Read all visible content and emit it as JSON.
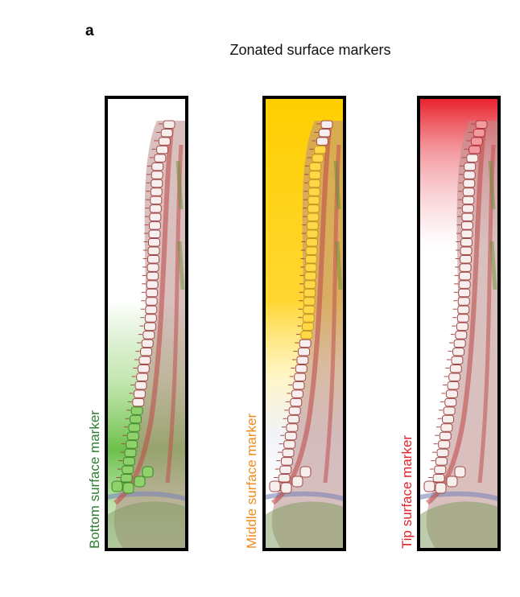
{
  "figure": {
    "panel_letter": "a",
    "title": "Zonated surface markers"
  },
  "panels": [
    {
      "id": "bottom",
      "label": "Bottom surface marker",
      "color": "#2e7d32",
      "fill": "#6cc04a"
    },
    {
      "id": "middle",
      "label": "Middle surface marker",
      "color": "#f08a1c",
      "fill": "#ffcf00"
    },
    {
      "id": "tip",
      "label": "Tip surface marker",
      "color": "#e0242b",
      "fill": "#e8202a"
    }
  ]
}
